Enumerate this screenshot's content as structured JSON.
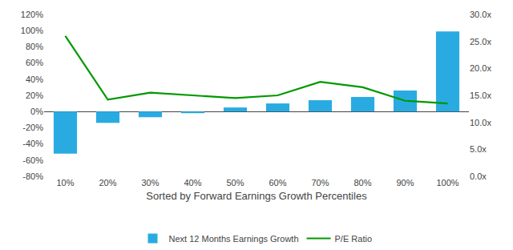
{
  "chart_data": {
    "type": "bar",
    "categories": [
      "10%",
      "20%",
      "30%",
      "40%",
      "50%",
      "60%",
      "70%",
      "80%",
      "90%",
      "100%"
    ],
    "series": [
      {
        "name": "Next 12 Months Earnings Growth",
        "type": "bar",
        "color": "#29ABE2",
        "values": [
          -52,
          -14,
          -7,
          -2,
          5,
          10,
          14,
          18,
          26,
          99
        ]
      },
      {
        "name": "P/E Ratio",
        "type": "line",
        "color": "#009900",
        "axis": "y2",
        "values": [
          26.0,
          14.2,
          15.5,
          15.0,
          14.5,
          15.0,
          17.5,
          16.5,
          14.0,
          13.5
        ]
      }
    ],
    "xlabel": "Sorted by Forward Earnings Growth Percentiles",
    "ylim": [
      -80,
      120
    ],
    "yticks": [
      {
        "value": -80,
        "label": "-80%"
      },
      {
        "value": -60,
        "label": "-60%"
      },
      {
        "value": -40,
        "label": "-40%"
      },
      {
        "value": -20,
        "label": "-20%"
      },
      {
        "value": 0,
        "label": "0%"
      },
      {
        "value": 20,
        "label": "20%"
      },
      {
        "value": 40,
        "label": "40%"
      },
      {
        "value": 60,
        "label": "60%"
      },
      {
        "value": 80,
        "label": "80%"
      },
      {
        "value": 100,
        "label": "100%"
      },
      {
        "value": 120,
        "label": "120%"
      }
    ],
    "y2lim": [
      0,
      30
    ],
    "y2ticks": [
      {
        "value": 0,
        "label": "0.0x"
      },
      {
        "value": 5,
        "label": "5.0x"
      },
      {
        "value": 10,
        "label": "10.0x"
      },
      {
        "value": 15,
        "label": "15.0x"
      },
      {
        "value": 20,
        "label": "20.0x"
      },
      {
        "value": 25,
        "label": "25.0x"
      },
      {
        "value": 30,
        "label": "30.0x"
      }
    ],
    "grid": false,
    "legend": "bottom"
  }
}
